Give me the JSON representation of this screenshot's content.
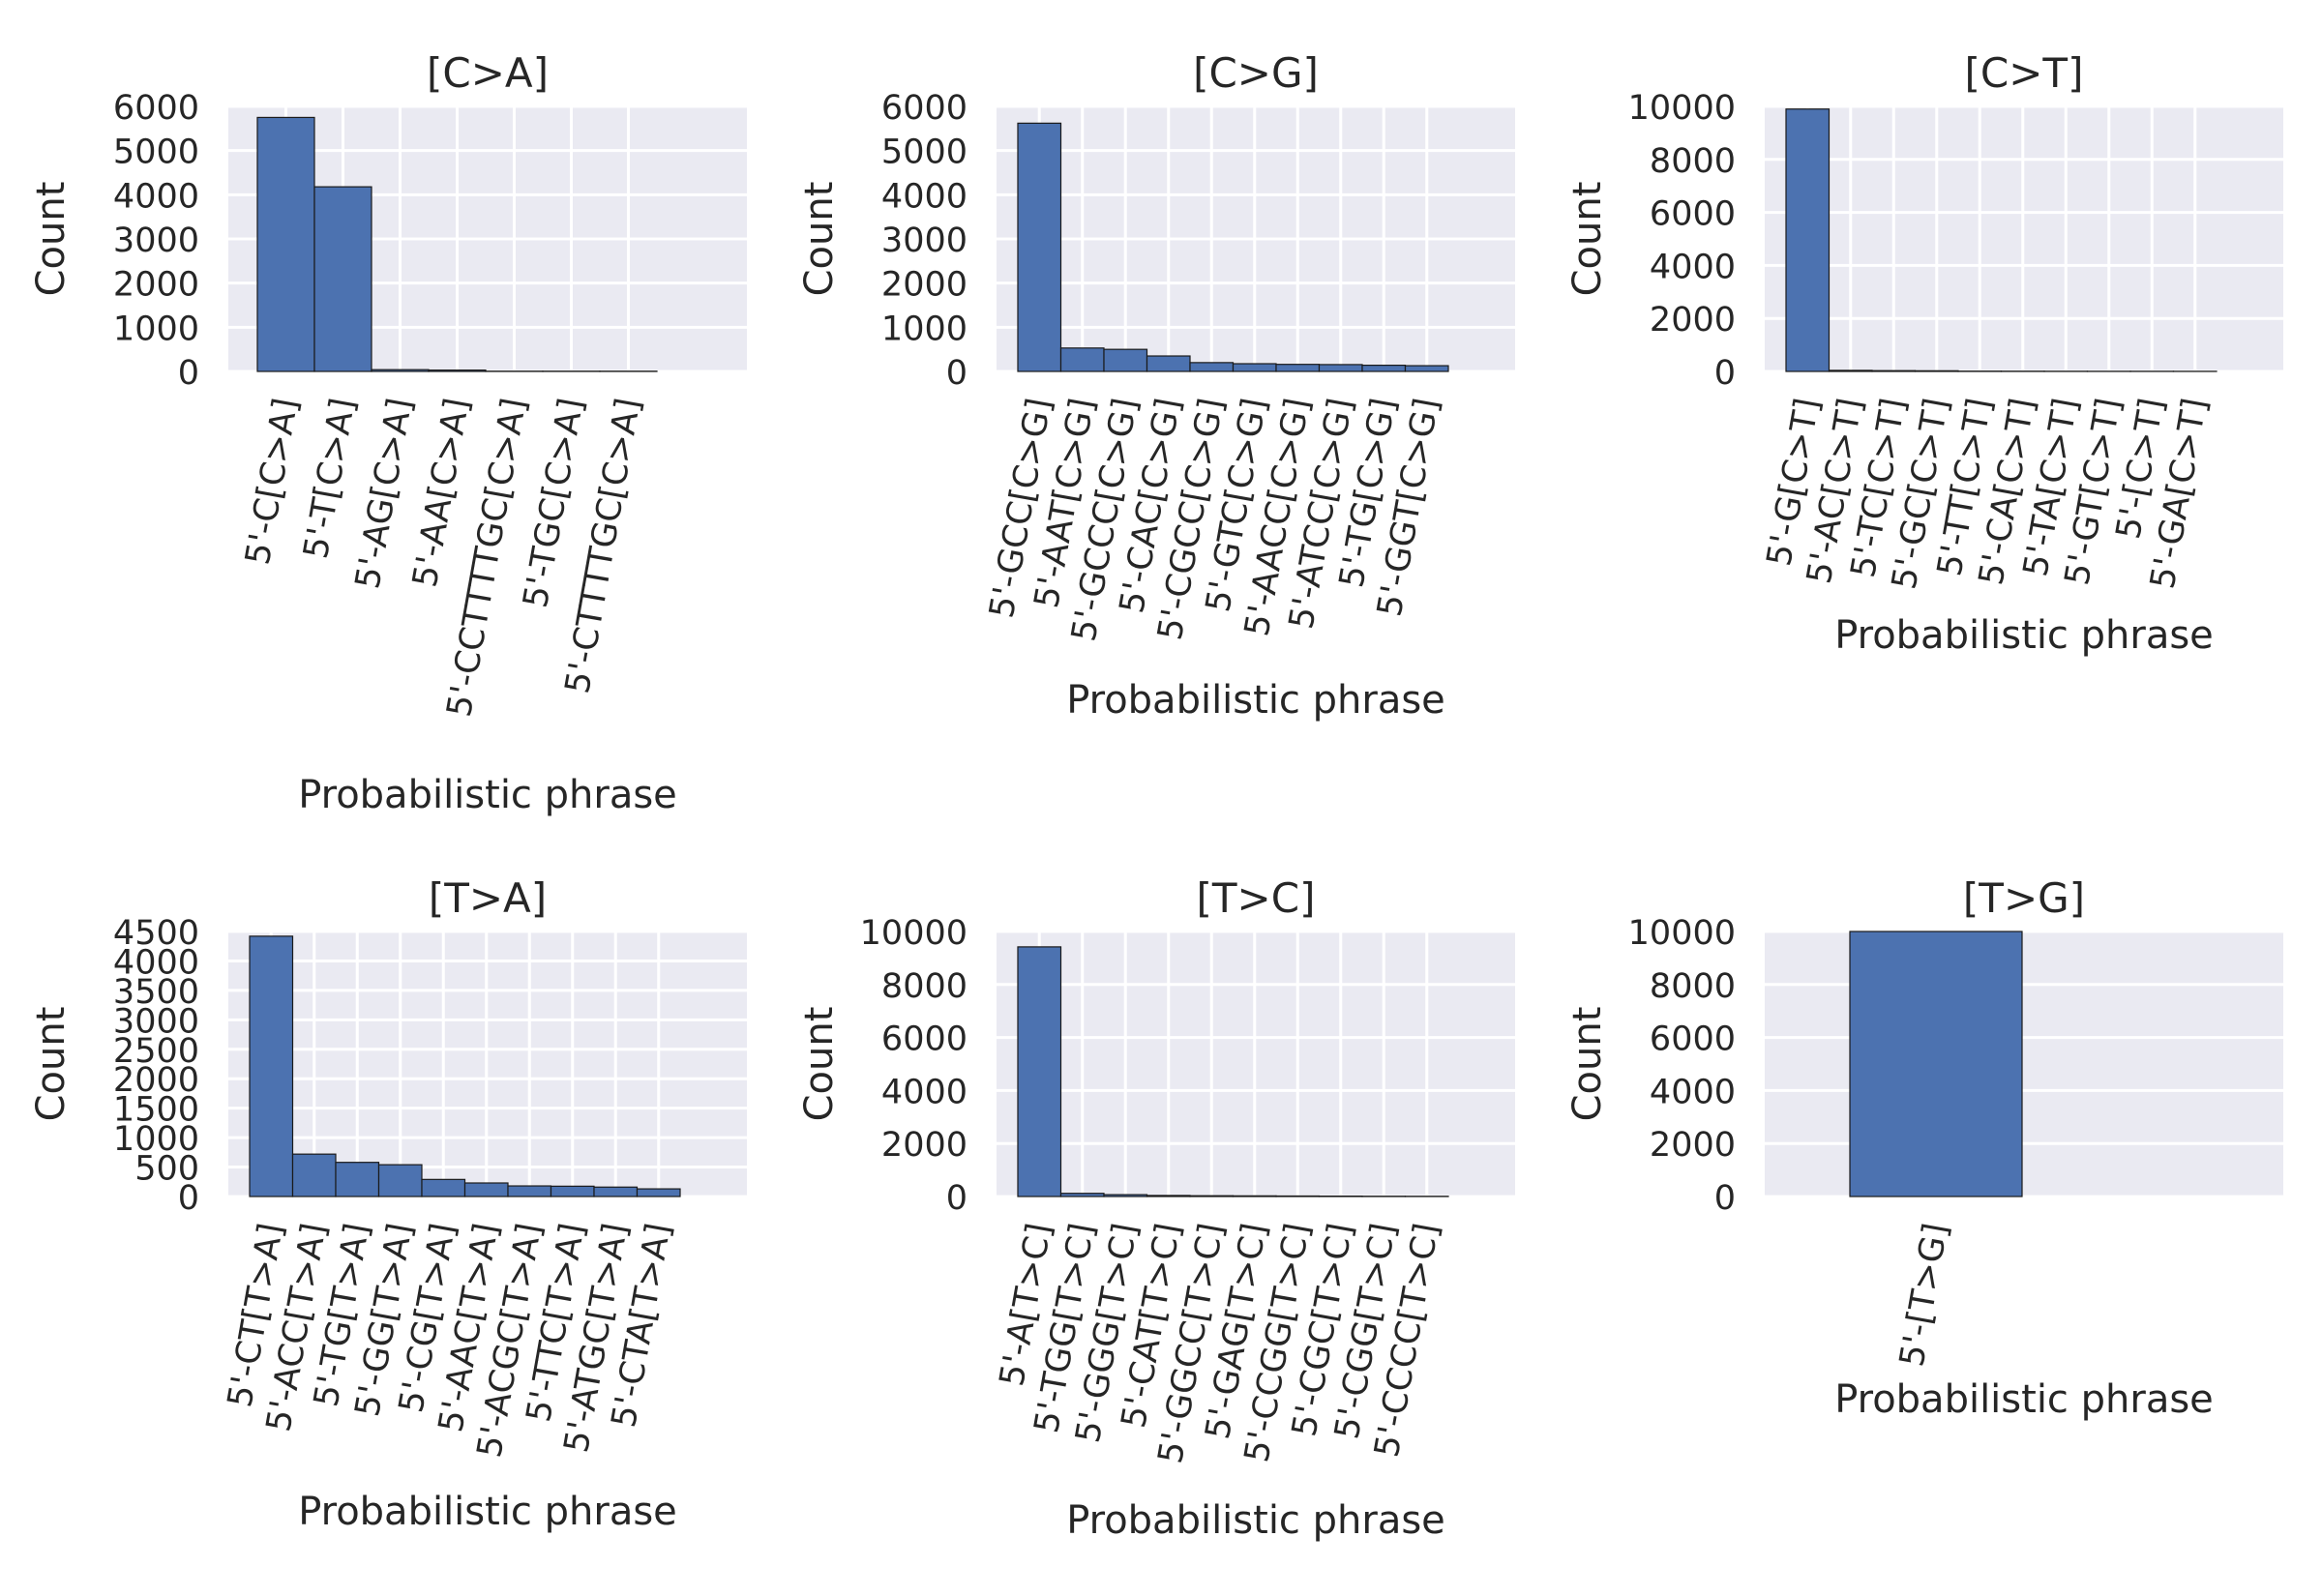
{
  "chart_data": [
    {
      "type": "bar",
      "title": "[C>A]",
      "xlabel": "Probabilistic phrase",
      "ylabel": "Count",
      "ylim": [
        0,
        6000
      ],
      "yticks": [
        "0",
        "1000",
        "2000",
        "3000",
        "4000",
        "5000",
        "6000"
      ],
      "grid": true,
      "categories": [
        "5'-C[C>A]",
        "5'-T[C>A]",
        "5'-AG[C>A]",
        "5'-AA[C>A]",
        "5'-CCTTTTGC[C>A]",
        "5'-TGC[C>A]",
        "5'-CTTTTGC[C>A]"
      ],
      "values": [
        5750,
        4180,
        40,
        30,
        5,
        5,
        5
      ]
    },
    {
      "type": "bar",
      "title": "[C>G]",
      "xlabel": "Probabilistic phrase",
      "ylabel": "Count",
      "ylim": [
        0,
        6000
      ],
      "yticks": [
        "0",
        "1000",
        "2000",
        "3000",
        "4000",
        "5000",
        "6000"
      ],
      "grid": true,
      "categories": [
        "5'-GCC[C>G]",
        "5'-AAT[C>G]",
        "5'-GCCC[C>G]",
        "5'-CAC[C>G]",
        "5'-CGCC[C>G]",
        "5'-GTC[C>G]",
        "5'-AACC[C>G]",
        "5'-ATCC[C>G]",
        "5'-TG[C>G]",
        "5'-GGT[C>G]"
      ],
      "values": [
        5620,
        530,
        500,
        350,
        200,
        175,
        160,
        155,
        140,
        130
      ]
    },
    {
      "type": "bar",
      "title": "[C>T]",
      "xlabel": "Probabilistic phrase",
      "ylabel": "Count",
      "ylim": [
        0,
        10000
      ],
      "yticks": [
        "0",
        "2000",
        "4000",
        "6000",
        "8000",
        "10000"
      ],
      "grid": true,
      "categories": [
        "5'-G[C>T]",
        "5'-AC[C>T]",
        "5'-TC[C>T]",
        "5'-GC[C>T]",
        "5'-TT[C>T]",
        "5'-CA[C>T]",
        "5'-TA[C>T]",
        "5'-GT[C>T]",
        "5'-[C>T]",
        "5'-GA[C>T]"
      ],
      "values": [
        9900,
        40,
        30,
        25,
        10,
        8,
        6,
        5,
        5,
        4
      ]
    },
    {
      "type": "bar",
      "title": "[T>A]",
      "xlabel": "Probabilistic phrase",
      "ylabel": "Count",
      "ylim": [
        0,
        4500
      ],
      "yticks": [
        "0",
        "500",
        "1000",
        "1500",
        "2000",
        "2500",
        "3000",
        "3500",
        "4000",
        "4500"
      ],
      "grid": true,
      "categories": [
        "5'-CT[T>A]",
        "5'-ACC[T>A]",
        "5'-TG[T>A]",
        "5'-GG[T>A]",
        "5'-CG[T>A]",
        "5'-AAC[T>A]",
        "5'-ACGC[T>A]",
        "5'-TTC[T>A]",
        "5'-ATGC[T>A]",
        "5'-CTA[T>A]"
      ],
      "values": [
        4420,
        720,
        580,
        540,
        290,
        230,
        180,
        175,
        160,
        130
      ]
    },
    {
      "type": "bar",
      "title": "[T>C]",
      "xlabel": "Probabilistic phrase",
      "ylabel": "Count",
      "ylim": [
        0,
        10000
      ],
      "yticks": [
        "0",
        "2000",
        "4000",
        "6000",
        "8000",
        "10000"
      ],
      "grid": true,
      "categories": [
        "5'-A[T>C]",
        "5'-TGG[T>C]",
        "5'-GGG[T>C]",
        "5'-CAT[T>C]",
        "5'-GGCC[T>C]",
        "5'-GAG[T>C]",
        "5'-CCGG[T>C]",
        "5'-CGC[T>C]",
        "5'-CGG[T>C]",
        "5'-CCCC[T>C]"
      ],
      "values": [
        9420,
        120,
        70,
        40,
        30,
        25,
        20,
        15,
        10,
        8
      ]
    },
    {
      "type": "bar",
      "title": "[T>G]",
      "xlabel": "Probabilistic phrase",
      "ylabel": "Count",
      "ylim": [
        0,
        10000
      ],
      "yticks": [
        "0",
        "2000",
        "4000",
        "6000",
        "8000",
        "10000"
      ],
      "grid": true,
      "categories": [
        "5'-[T>G]"
      ],
      "values": [
        10000
      ]
    }
  ]
}
